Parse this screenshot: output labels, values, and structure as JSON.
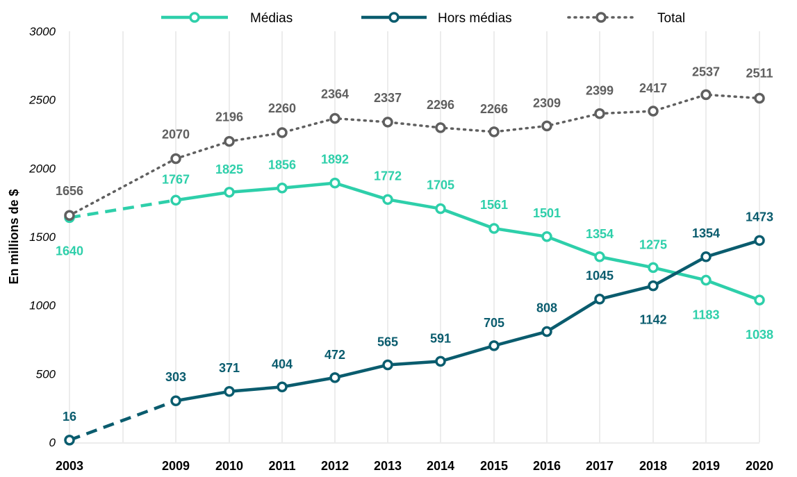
{
  "chart_data": {
    "type": "line",
    "categories": [
      "2003",
      "2009",
      "2010",
      "2011",
      "2012",
      "2013",
      "2014",
      "2015",
      "2016",
      "2017",
      "2018",
      "2019",
      "2020"
    ],
    "ylabel": "En millions de $",
    "xlabel": "",
    "ylim": [
      0,
      3000
    ],
    "yticks": [
      "0",
      "500",
      "1000",
      "1500",
      "2000",
      "2500",
      "3000"
    ],
    "grid": "vertical",
    "legend_position": "top",
    "series": [
      {
        "name": "Médias",
        "color": "#2ecfaa",
        "style": "solid",
        "values": [
          1640,
          1767,
          1825,
          1856,
          1892,
          1772,
          1705,
          1561,
          1501,
          1354,
          1275,
          1183,
          1038
        ],
        "labels": [
          "1640",
          "1767",
          "1825",
          "1856",
          "1892",
          "1772",
          "1705",
          "1561",
          "1501",
          "1354",
          "1275",
          "1183",
          "1038"
        ]
      },
      {
        "name": "Hors médias",
        "color": "#0a5c6e",
        "style": "solid",
        "values": [
          16,
          303,
          371,
          404,
          472,
          565,
          591,
          705,
          808,
          1045,
          1142,
          1354,
          1473
        ],
        "labels": [
          "16",
          "303",
          "371",
          "404",
          "472",
          "565",
          "591",
          "705",
          "808",
          "1045",
          "1142",
          "1354",
          "1473"
        ]
      },
      {
        "name": "Total",
        "color": "#5f5f5f",
        "style": "dotted",
        "values": [
          1656,
          2070,
          2196,
          2260,
          2364,
          2337,
          2296,
          2266,
          2309,
          2399,
          2417,
          2537,
          2511
        ],
        "labels": [
          "1656",
          "2070",
          "2196",
          "2260",
          "2364",
          "2337",
          "2296",
          "2266",
          "2309",
          "2399",
          "2417",
          "2537",
          "2511"
        ]
      }
    ]
  }
}
